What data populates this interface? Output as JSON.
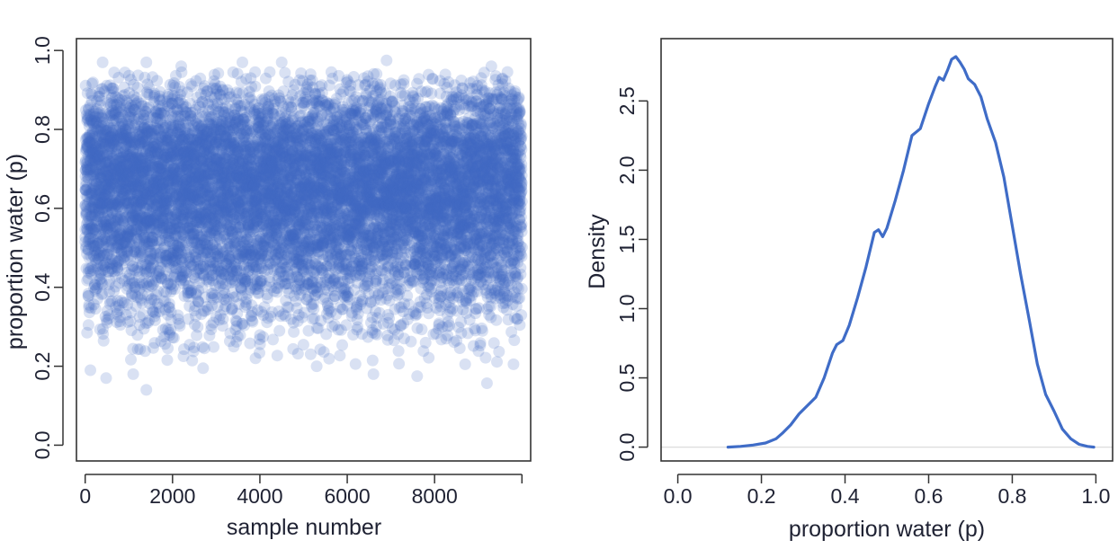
{
  "chart_data": [
    {
      "type": "scatter",
      "xlabel": "sample number",
      "ylabel": "proportion water (p)",
      "xlim": [
        -200,
        10200
      ],
      "ylim": [
        -0.04,
        1.03
      ],
      "xticks": [
        0,
        2000,
        4000,
        6000,
        8000
      ],
      "xtick_labels": [
        "0",
        "2000",
        "4000",
        "6000",
        "8000"
      ],
      "yticks": [
        0.0,
        0.2,
        0.4,
        0.6,
        0.8,
        1.0
      ],
      "ytick_labels": [
        "0.0",
        "0.2",
        "0.4",
        "0.6",
        "0.8",
        "1.0"
      ],
      "point_color": "#4169c4",
      "point_opacity": 0.2,
      "n_samples": 10000,
      "sample_distribution": {
        "shape_a": 7,
        "shape_b": 4
      },
      "outliers": [
        {
          "x": 1400,
          "y": 0.14
        },
        {
          "x": 9200,
          "y": 0.157
        },
        {
          "x": 1100,
          "y": 0.18
        },
        {
          "x": 480,
          "y": 0.17
        },
        {
          "x": 6600,
          "y": 0.18
        },
        {
          "x": 7600,
          "y": 0.175
        },
        {
          "x": 120,
          "y": 0.19
        },
        {
          "x": 2700,
          "y": 0.195
        },
        {
          "x": 5300,
          "y": 0.2
        },
        {
          "x": 8700,
          "y": 0.205
        },
        {
          "x": 3900,
          "y": 0.22
        },
        {
          "x": 400,
          "y": 0.97
        },
        {
          "x": 1400,
          "y": 0.97
        },
        {
          "x": 2200,
          "y": 0.96
        },
        {
          "x": 3600,
          "y": 0.97
        },
        {
          "x": 4500,
          "y": 0.97
        },
        {
          "x": 6900,
          "y": 0.975
        },
        {
          "x": 9300,
          "y": 0.96
        }
      ]
    },
    {
      "type": "line",
      "xlabel": "proportion water (p)",
      "ylabel": "Density",
      "xlim": [
        -0.04,
        1.04
      ],
      "ylim": [
        -0.1,
        2.95
      ],
      "xticks": [
        0.0,
        0.2,
        0.4,
        0.6,
        0.8,
        1.0
      ],
      "xtick_labels": [
        "0.0",
        "0.2",
        "0.4",
        "0.6",
        "0.8",
        "1.0"
      ],
      "yticks": [
        0.0,
        0.5,
        1.0,
        1.5,
        2.0,
        2.5
      ],
      "ytick_labels": [
        "0.0",
        "0.5",
        "1.0",
        "1.5",
        "2.0",
        "2.5"
      ],
      "line_color": "#3f6cc7",
      "baseline_color": "#dcdcdc",
      "x": [
        0.12,
        0.15,
        0.18,
        0.21,
        0.235,
        0.25,
        0.27,
        0.29,
        0.31,
        0.33,
        0.35,
        0.37,
        0.38,
        0.395,
        0.41,
        0.43,
        0.45,
        0.47,
        0.48,
        0.49,
        0.5,
        0.52,
        0.54,
        0.56,
        0.58,
        0.6,
        0.615,
        0.625,
        0.635,
        0.645,
        0.655,
        0.665,
        0.675,
        0.685,
        0.695,
        0.71,
        0.725,
        0.74,
        0.76,
        0.78,
        0.8,
        0.82,
        0.84,
        0.86,
        0.88,
        0.9,
        0.92,
        0.94,
        0.96,
        0.98,
        0.995
      ],
      "y": [
        0.0,
        0.005,
        0.015,
        0.03,
        0.06,
        0.1,
        0.16,
        0.24,
        0.3,
        0.36,
        0.5,
        0.68,
        0.74,
        0.77,
        0.88,
        1.08,
        1.3,
        1.55,
        1.57,
        1.52,
        1.58,
        1.78,
        2.0,
        2.25,
        2.3,
        2.48,
        2.6,
        2.67,
        2.65,
        2.72,
        2.8,
        2.82,
        2.78,
        2.73,
        2.66,
        2.62,
        2.53,
        2.37,
        2.2,
        1.95,
        1.6,
        1.25,
        0.93,
        0.6,
        0.38,
        0.26,
        0.13,
        0.06,
        0.02,
        0.005,
        0.0
      ]
    }
  ]
}
